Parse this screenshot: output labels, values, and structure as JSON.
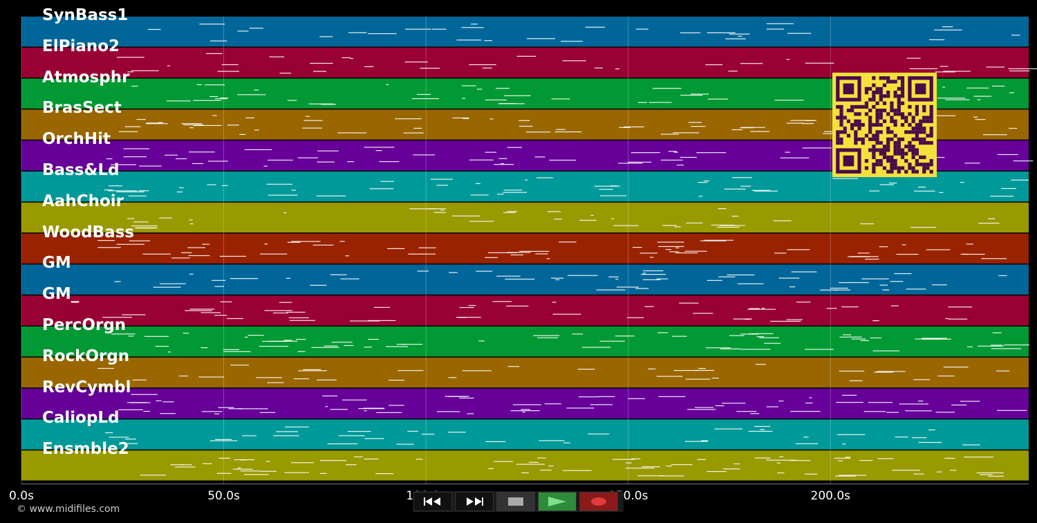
{
  "tracks": [
    {
      "name": "SynBass1",
      "color": "#006699"
    },
    {
      "name": "ElPiano2",
      "color": "#990033"
    },
    {
      "name": "Atmosphr",
      "color": "#009933"
    },
    {
      "name": "BrasSect",
      "color": "#996600"
    },
    {
      "name": "OrchHit",
      "color": "#660099"
    },
    {
      "name": "Bass&Ld",
      "color": "#009999"
    },
    {
      "name": "AahChoir",
      "color": "#999900"
    },
    {
      "name": "WoodBass",
      "color": "#992200"
    },
    {
      "name": "GM",
      "color": "#006699"
    },
    {
      "name": "GM_",
      "color": "#990033"
    },
    {
      "name": "PercOrgn",
      "color": "#009933"
    },
    {
      "name": "RockOrgn",
      "color": "#996600"
    },
    {
      "name": "RevCymbl",
      "color": "#660099"
    },
    {
      "name": "CaliopLd",
      "color": "#009999"
    },
    {
      "name": "Ensmble2",
      "color": "#999900"
    }
  ],
  "timeline": {
    "ticks": [
      "0.0s",
      "50.0s",
      "100.0s",
      "150.0s",
      "200.0s"
    ],
    "tick_seconds": [
      0,
      50,
      100,
      150,
      200
    ],
    "end_seconds": 249
  },
  "copyright": "© www.midifiles.com",
  "transport": {
    "rewind": {
      "icon": "rewind-icon"
    },
    "fast_forward": {
      "icon": "fast-forward-icon"
    },
    "stop": {
      "icon": "stop-icon"
    },
    "play": {
      "icon": "play-icon",
      "color": "#2e8b3a"
    },
    "record": {
      "icon": "record-icon",
      "color": "#8b1a1a"
    }
  },
  "qr_colors": {
    "light": "#f5e13c",
    "dark": "#4a0a4a"
  }
}
